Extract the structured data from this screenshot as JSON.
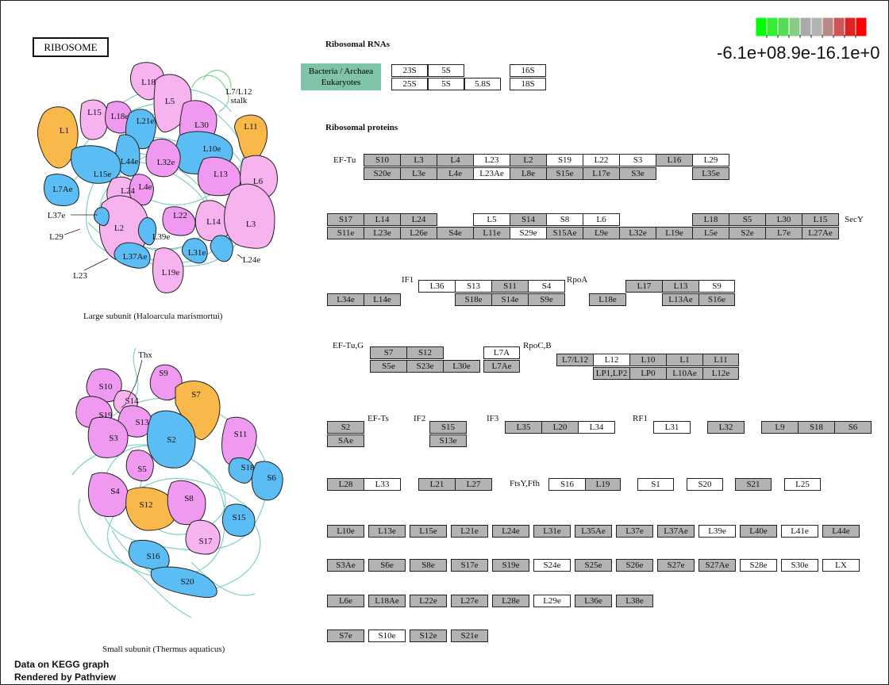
{
  "title": "RIBOSOME",
  "legend": {
    "colors": [
      "#00ff00",
      "#33ee33",
      "#55dd55",
      "#88cc88",
      "#aaaaaa",
      "#b3b3b3",
      "#bb8888",
      "#cc5555",
      "#dd2222",
      "#ff0000"
    ],
    "min_label": "-6.1e+00",
    "mid_label": "-9.9e-16",
    "max_label": "6.1e+00",
    "overlap_text": "-6.1e+08.9e-16.1e+0"
  },
  "sections": {
    "rna": "Ribosomal RNAs",
    "proteins": "Ribosomal proteins"
  },
  "rna_legend": {
    "bacteria": "Bacteria / Archaea",
    "eukaryotes": "Eukaryotes"
  },
  "captions": {
    "large": "Large subunit (Haloarcula marismortui)",
    "small": "Small subunit (Thermus aquaticus)"
  },
  "footer": {
    "line1": "Data on KEGG graph",
    "line2": "Rendered by Pathview"
  },
  "side_labels": [
    "EF-Tu",
    "SecY",
    "IF1",
    "RpoA",
    "EF-Tu,G",
    "RpoC,B",
    "EF-Ts",
    "IF2",
    "IF3",
    "RF1",
    "FtsY,Ffh"
  ],
  "boxes": [
    {
      "t": "23S",
      "c": "w"
    },
    {
      "t": "5S",
      "c": "w"
    },
    {
      "t": "16S",
      "c": "w"
    },
    {
      "t": "25S",
      "c": "w"
    },
    {
      "t": "5S",
      "c": "w"
    },
    {
      "t": "5.8S",
      "c": "w"
    },
    {
      "t": "18S",
      "c": "w"
    },
    {
      "t": "S10",
      "c": "g"
    },
    {
      "t": "L3",
      "c": "g"
    },
    {
      "t": "L4",
      "c": "g"
    },
    {
      "t": "L23",
      "c": "w"
    },
    {
      "t": "L2",
      "c": "g"
    },
    {
      "t": "S19",
      "c": "w"
    },
    {
      "t": "L22",
      "c": "w"
    },
    {
      "t": "S3",
      "c": "w"
    },
    {
      "t": "L16",
      "c": "g"
    },
    {
      "t": "L29",
      "c": "w"
    },
    {
      "t": "S20e",
      "c": "g"
    },
    {
      "t": "L3e",
      "c": "g"
    },
    {
      "t": "L4e",
      "c": "g"
    },
    {
      "t": "L23Ae",
      "c": "w"
    },
    {
      "t": "L8e",
      "c": "g"
    },
    {
      "t": "S15e",
      "c": "g"
    },
    {
      "t": "L17e",
      "c": "g"
    },
    {
      "t": "S3e",
      "c": "g"
    },
    {
      "t": "L35e",
      "c": "g"
    },
    {
      "t": "S17",
      "c": "g"
    },
    {
      "t": "L14",
      "c": "g"
    },
    {
      "t": "L24",
      "c": "g"
    },
    {
      "t": "L5",
      "c": "w"
    },
    {
      "t": "S14",
      "c": "g"
    },
    {
      "t": "S8",
      "c": "w"
    },
    {
      "t": "L6",
      "c": "w"
    },
    {
      "t": "L18",
      "c": "g"
    },
    {
      "t": "S5",
      "c": "g"
    },
    {
      "t": "L30",
      "c": "g"
    },
    {
      "t": "L15",
      "c": "g"
    },
    {
      "t": "S11e",
      "c": "g"
    },
    {
      "t": "L23e",
      "c": "g"
    },
    {
      "t": "L26e",
      "c": "g"
    },
    {
      "t": "S4e",
      "c": "g"
    },
    {
      "t": "L11e",
      "c": "g"
    },
    {
      "t": "S29e",
      "c": "w"
    },
    {
      "t": "S15Ae",
      "c": "g"
    },
    {
      "t": "L9e",
      "c": "g"
    },
    {
      "t": "L32e",
      "c": "g"
    },
    {
      "t": "L19e",
      "c": "g"
    },
    {
      "t": "L5e",
      "c": "g"
    },
    {
      "t": "S2e",
      "c": "g"
    },
    {
      "t": "L7e",
      "c": "g"
    },
    {
      "t": "L27Ae",
      "c": "g"
    },
    {
      "t": "L36",
      "c": "w"
    },
    {
      "t": "S13",
      "c": "w"
    },
    {
      "t": "S11",
      "c": "g"
    },
    {
      "t": "S4",
      "c": "w"
    },
    {
      "t": "L17",
      "c": "g"
    },
    {
      "t": "L13",
      "c": "g"
    },
    {
      "t": "S9",
      "c": "w"
    },
    {
      "t": "L34e",
      "c": "g"
    },
    {
      "t": "L14e",
      "c": "g"
    },
    {
      "t": "S18e",
      "c": "g"
    },
    {
      "t": "S14e",
      "c": "g"
    },
    {
      "t": "S9e",
      "c": "g"
    },
    {
      "t": "L18e",
      "c": "g"
    },
    {
      "t": "L13Ae",
      "c": "g"
    },
    {
      "t": "S16e",
      "c": "g"
    },
    {
      "t": "S7",
      "c": "g"
    },
    {
      "t": "S12",
      "c": "g"
    },
    {
      "t": "L7A",
      "c": "w"
    },
    {
      "t": "L7/L12",
      "c": "g"
    },
    {
      "t": "L12",
      "c": "w"
    },
    {
      "t": "L10",
      "c": "g"
    },
    {
      "t": "L1",
      "c": "g"
    },
    {
      "t": "L11",
      "c": "g"
    },
    {
      "t": "S5e",
      "c": "g"
    },
    {
      "t": "S23e",
      "c": "g"
    },
    {
      "t": "L30e",
      "c": "g"
    },
    {
      "t": "L7Ae",
      "c": "g"
    },
    {
      "t": "LP1,LP2",
      "c": "g"
    },
    {
      "t": "LP0",
      "c": "g"
    },
    {
      "t": "L10Ae",
      "c": "g"
    },
    {
      "t": "L12e",
      "c": "g"
    },
    {
      "t": "S2",
      "c": "g"
    },
    {
      "t": "S15",
      "c": "g"
    },
    {
      "t": "L35",
      "c": "g"
    },
    {
      "t": "L20",
      "c": "g"
    },
    {
      "t": "L34",
      "c": "w"
    },
    {
      "t": "L31",
      "c": "w"
    },
    {
      "t": "L32",
      "c": "g"
    },
    {
      "t": "L9",
      "c": "g"
    },
    {
      "t": "S18",
      "c": "g"
    },
    {
      "t": "S6",
      "c": "g"
    },
    {
      "t": "SAe",
      "c": "g"
    },
    {
      "t": "S13e",
      "c": "g"
    },
    {
      "t": "L28",
      "c": "g"
    },
    {
      "t": "L33",
      "c": "w"
    },
    {
      "t": "L21",
      "c": "g"
    },
    {
      "t": "L27",
      "c": "g"
    },
    {
      "t": "S16",
      "c": "w"
    },
    {
      "t": "L19",
      "c": "g"
    },
    {
      "t": "S1",
      "c": "w"
    },
    {
      "t": "S20",
      "c": "w"
    },
    {
      "t": "S21",
      "c": "g"
    },
    {
      "t": "L25",
      "c": "w"
    },
    {
      "t": "L10e",
      "c": "g"
    },
    {
      "t": "L13e",
      "c": "g"
    },
    {
      "t": "L15e",
      "c": "g"
    },
    {
      "t": "L21e",
      "c": "g"
    },
    {
      "t": "L24e",
      "c": "g"
    },
    {
      "t": "L31e",
      "c": "g"
    },
    {
      "t": "L35Ae",
      "c": "g"
    },
    {
      "t": "L37e",
      "c": "g"
    },
    {
      "t": "L37Ae",
      "c": "g"
    },
    {
      "t": "L39e",
      "c": "w"
    },
    {
      "t": "L40e",
      "c": "g"
    },
    {
      "t": "L41e",
      "c": "w"
    },
    {
      "t": "L44e",
      "c": "g"
    },
    {
      "t": "S3Ae",
      "c": "g"
    },
    {
      "t": "S6e",
      "c": "g"
    },
    {
      "t": "S8e",
      "c": "g"
    },
    {
      "t": "S17e",
      "c": "g"
    },
    {
      "t": "S19e",
      "c": "g"
    },
    {
      "t": "S24e",
      "c": "w"
    },
    {
      "t": "S25e",
      "c": "g"
    },
    {
      "t": "S26e",
      "c": "g"
    },
    {
      "t": "S27e",
      "c": "g"
    },
    {
      "t": "S27Ae",
      "c": "g"
    },
    {
      "t": "S28e",
      "c": "w"
    },
    {
      "t": "S30e",
      "c": "w"
    },
    {
      "t": "LX",
      "c": "w"
    },
    {
      "t": "L6e",
      "c": "g"
    },
    {
      "t": "L18Ae",
      "c": "g"
    },
    {
      "t": "L22e",
      "c": "g"
    },
    {
      "t": "L27e",
      "c": "g"
    },
    {
      "t": "L28e",
      "c": "g"
    },
    {
      "t": "L29e",
      "c": "w"
    },
    {
      "t": "L36e",
      "c": "g"
    },
    {
      "t": "L38e",
      "c": "g"
    },
    {
      "t": "S7e",
      "c": "g"
    },
    {
      "t": "S10e",
      "c": "w"
    },
    {
      "t": "S12e",
      "c": "g"
    },
    {
      "t": "S21e",
      "c": "g"
    }
  ],
  "large_subunit_labels": [
    "L18",
    "L5",
    "L7/L12",
    "stalk",
    "L15",
    "L18e",
    "L21e",
    "L30",
    "L1",
    "L11",
    "L10e",
    "L44e",
    "L32e",
    "L15e",
    "L13",
    "L6",
    "L7Ae",
    "L24",
    "L4e",
    "L37e",
    "L2",
    "L22",
    "L14",
    "L3",
    "L29",
    "L39e",
    "L31e",
    "L24e",
    "L37Ae",
    "L19e",
    "L23"
  ],
  "small_subunit_labels": [
    "Thx",
    "S9",
    "S10",
    "S7",
    "S14",
    "S19",
    "S13",
    "S3",
    "S2",
    "S11",
    "S18",
    "S6",
    "S5",
    "S4",
    "S12",
    "S8",
    "S15",
    "S17",
    "S16",
    "S20"
  ]
}
